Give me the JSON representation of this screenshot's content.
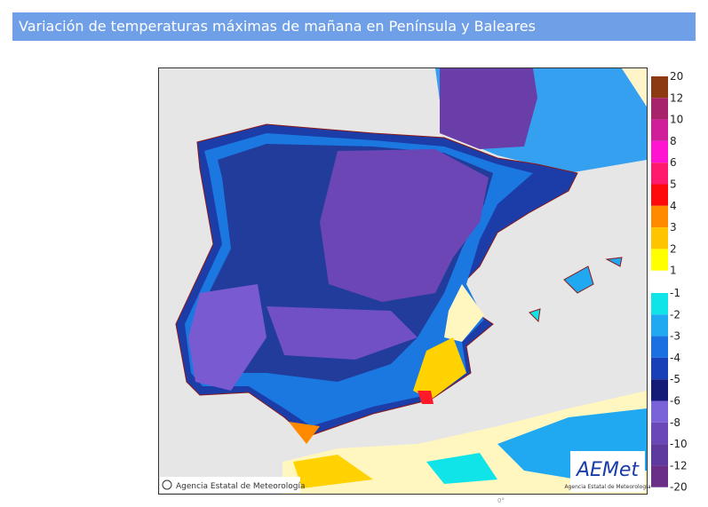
{
  "header": {
    "title": "Variación de temperaturas máximas de mañana en Península y Baleares"
  },
  "map": {
    "copyright": "Agencia Estatal de Meteorología",
    "logo": "AEMet",
    "logo_caption": "Agencia Estatal de Meteorología",
    "meridian_label": "0°"
  },
  "legend": {
    "warm": {
      "labels": [
        "20",
        "12",
        "10",
        "8",
        "6",
        "5",
        "4",
        "3",
        "2",
        "1"
      ],
      "colors": [
        "#8b3a12",
        "#a8246a",
        "#d01e9a",
        "#ff14d2",
        "#ff1a6e",
        "#ff0a0a",
        "#ff8a00",
        "#ffc400",
        "#ffff00"
      ]
    },
    "cold": {
      "labels": [
        "-1",
        "-2",
        "-3",
        "-4",
        "-5",
        "-6",
        "-8",
        "-10",
        "-12",
        "-20"
      ],
      "colors": [
        "#10e4e8",
        "#20a8f0",
        "#1a70e0",
        "#1a40b8",
        "#141c78",
        "#7a62d8",
        "#6a48b8",
        "#5e3a9e",
        "#6a2e88"
      ]
    }
  }
}
